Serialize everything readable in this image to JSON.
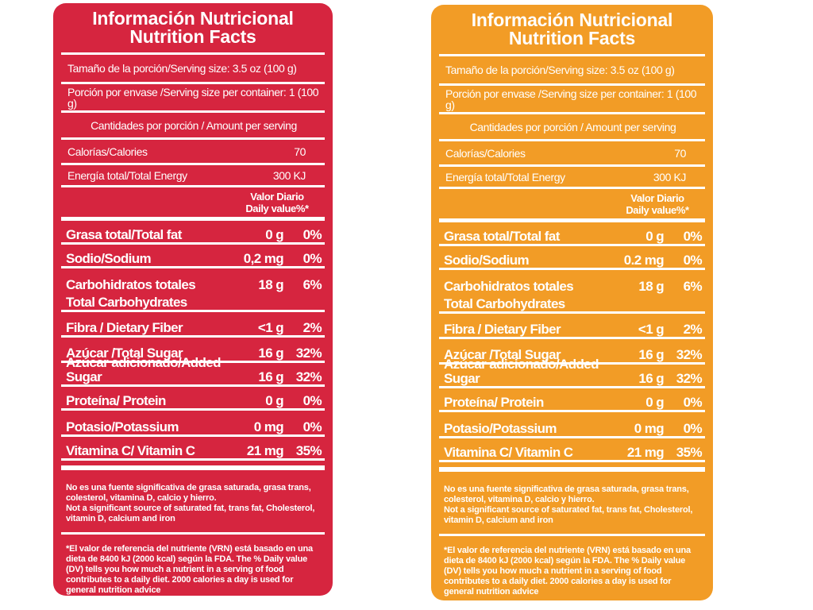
{
  "colors": {
    "red_panel": "#d6253f",
    "orange_panel": "#f29c26"
  },
  "panels": [
    {
      "title_es": "Información Nutricional",
      "title_en": "Nutrition Facts",
      "serving_size": "Tamaño de la porción/Serving size: 3.5 oz (100 g)",
      "servings_per_container": "Porción por envase /Serving size per container: 1 (100 g)",
      "amount_per_serving": "Cantidades por porción / Amount per serving",
      "calories_label": "Calorías/Calories",
      "calories_value": "70",
      "energy_label": "Energía total/Total Energy",
      "energy_value": "300 KJ",
      "dv_header_1": "Valor Diario",
      "dv_header_2": "Daily value%*",
      "nutrients": [
        {
          "name": "Grasa total/Total fat",
          "amount": "0 g",
          "dv": "0%"
        },
        {
          "name": "Sodio/Sodium",
          "amount": "0,2 mg",
          "dv": "0%"
        },
        {
          "name": "Carbohidratos totales",
          "amount": "18 g",
          "dv": "6%"
        },
        {
          "name": "Total Carbohydrates",
          "amount": "",
          "dv": ""
        },
        {
          "name": "Fibra / Dietary Fiber",
          "amount": "<1 g",
          "dv": "2%"
        },
        {
          "name": "Azúcar /Total Sugar",
          "amount": "16 g",
          "dv": "32%"
        },
        {
          "name": "Azúcar adicionado/Added Sugar",
          "amount": "16 g",
          "dv": "32%"
        },
        {
          "name": "Proteína/ Protein",
          "amount": "0 g",
          "dv": "0%"
        },
        {
          "name": "Potasio/Potassium",
          "amount": "0 mg",
          "dv": "0%"
        },
        {
          "name": "Vitamina C/ Vitamin C",
          "amount": "21 mg",
          "dv": "35%"
        }
      ],
      "note_1": "No es una fuente significativa de grasa saturada, grasa trans, colesterol, vitamina D, calcio y hierro.",
      "note_2": "Not a significant source of saturated fat, trans fat, Cholesterol, vitamin D, calcium and iron",
      "footnote": "*El valor de referencia del nutriente (VRN) está basado en una dieta de 8400 kJ (2000 kcal) según la FDA. The % Daily value (DV) tells you how much a nutrient in a serving of food contributes to a daily diet. 2000 calories a day is used for general nutrition advice"
    },
    {
      "title_es": "Información Nutricional",
      "title_en": "Nutrition Facts",
      "serving_size": "Tamaño de la porción/Serving size: 3.5 oz (100 g)",
      "servings_per_container": "Porción por envase /Serving size per container: 1 (100 g)",
      "amount_per_serving": "Cantidades por porción / Amount per serving",
      "calories_label": "Calorías/Calories",
      "calories_value": "70",
      "energy_label": "Energía total/Total Energy",
      "energy_value": "300 KJ",
      "dv_header_1": "Valor Diario",
      "dv_header_2": "Daily value%*",
      "nutrients": [
        {
          "name": "Grasa total/Total fat",
          "amount": "0 g",
          "dv": "0%"
        },
        {
          "name": "Sodio/Sodium",
          "amount": "0.2 mg",
          "dv": "0%"
        },
        {
          "name": "Carbohidratos totales",
          "amount": "18 g",
          "dv": "6%"
        },
        {
          "name": "Total Carbohydrates",
          "amount": "",
          "dv": ""
        },
        {
          "name": "Fibra / Dietary Fiber",
          "amount": "<1 g",
          "dv": "2%"
        },
        {
          "name": "Azúcar /Total Sugar",
          "amount": "16 g",
          "dv": "32%"
        },
        {
          "name": "Azúcar adicionado/Added Sugar",
          "amount": "16 g",
          "dv": "32%"
        },
        {
          "name": "Proteína/ Protein",
          "amount": "0 g",
          "dv": "0%"
        },
        {
          "name": "Potasio/Potassium",
          "amount": "0 mg",
          "dv": "0%"
        },
        {
          "name": "Vitamina C/ Vitamin C",
          "amount": "21 mg",
          "dv": "35%"
        }
      ],
      "note_1": "No es una fuente significativa de grasa saturada, grasa trans, colesterol, vitamina D, calcio y hierro.",
      "note_2": "Not a significant source of saturated fat, trans fat, Cholesterol, vitamin D, calcium and iron",
      "footnote": "*El valor de referencia del nutriente (VRN) está basado en una dieta de 8400 kJ (2000 kcal) según la FDA. The % Daily value (DV) tells you how much a nutrient in a serving of food contributes to a daily diet. 2000 calories a day is used for general nutrition advice"
    }
  ]
}
